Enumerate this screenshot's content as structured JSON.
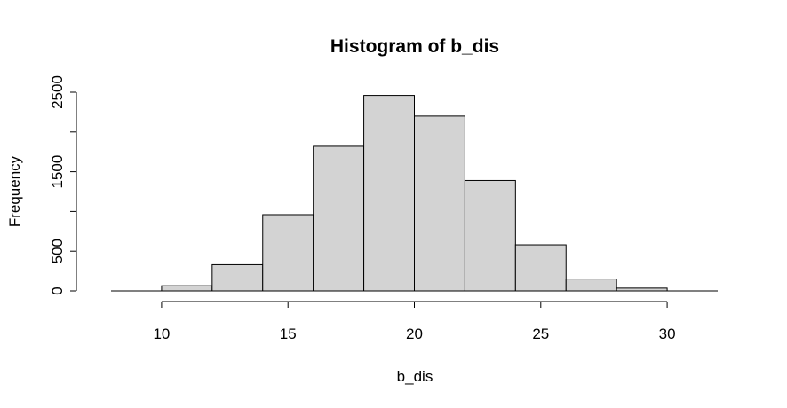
{
  "chart_data": {
    "type": "bar",
    "title": "Histogram of b_dis",
    "xlabel": "b_dis",
    "ylabel": "Frequency",
    "bins": [
      {
        "start": 10,
        "end": 12,
        "count": 65
      },
      {
        "start": 12,
        "end": 14,
        "count": 330
      },
      {
        "start": 14,
        "end": 16,
        "count": 960
      },
      {
        "start": 16,
        "end": 18,
        "count": 1820
      },
      {
        "start": 18,
        "end": 20,
        "count": 2460
      },
      {
        "start": 20,
        "end": 22,
        "count": 2200
      },
      {
        "start": 22,
        "end": 24,
        "count": 1390
      },
      {
        "start": 24,
        "end": 26,
        "count": 580
      },
      {
        "start": 26,
        "end": 28,
        "count": 150
      },
      {
        "start": 28,
        "end": 30,
        "count": 35
      }
    ],
    "xlim": [
      8,
      32
    ],
    "ylim": [
      0,
      2500
    ],
    "x_axis_range": [
      10,
      30
    ],
    "xticks": [
      10,
      15,
      20,
      25,
      30
    ],
    "xtick_labels": [
      "10",
      "15",
      "20",
      "25",
      "30"
    ],
    "yticks": [
      0,
      500,
      1000,
      1500,
      2000,
      2500
    ],
    "ytick_labels": [
      "0",
      "500",
      "",
      "1500",
      "",
      "2500"
    ],
    "bar_color": "#d3d3d3",
    "edge_color": "#000000",
    "grid": false
  }
}
